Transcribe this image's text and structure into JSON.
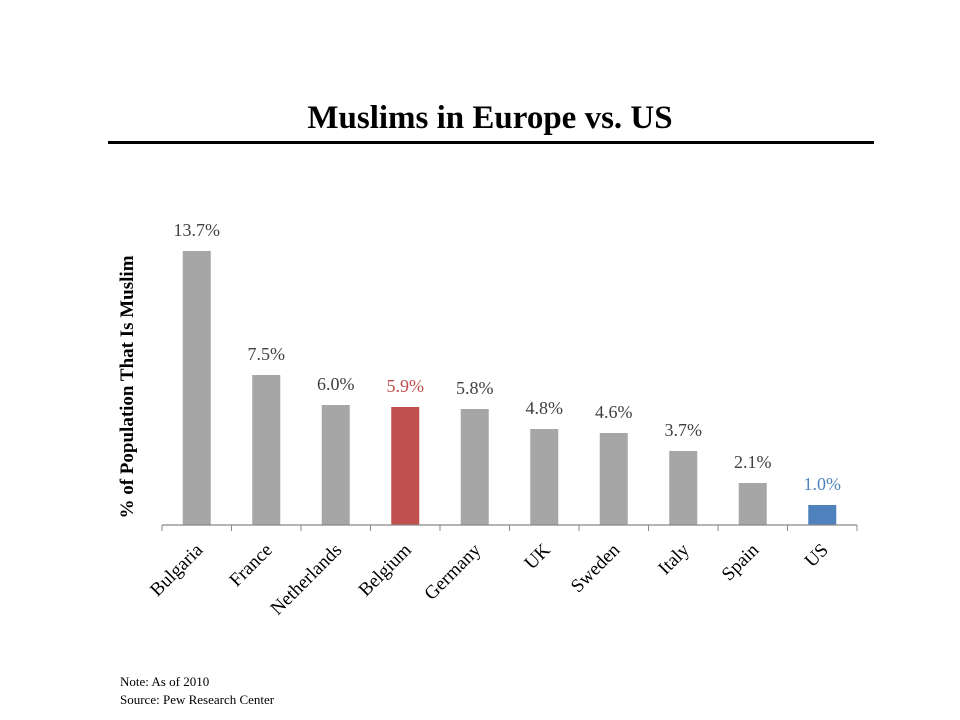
{
  "slide": {
    "title": "Muslims in Europe vs. US",
    "note": "Note: As of 2010",
    "source": "Source: Pew Research Center"
  },
  "chart_data": {
    "type": "bar",
    "title": "Muslims in Europe vs. US",
    "xlabel": "",
    "ylabel": "% of Population That Is Muslim",
    "ylim": [
      0,
      13.7
    ],
    "grid": false,
    "legend": "none",
    "categories": [
      "Bulgaria",
      "France",
      "Netherlands",
      "Belgium",
      "Germany",
      "UK",
      "Sweden",
      "Italy",
      "Spain",
      "US"
    ],
    "values": [
      13.7,
      7.5,
      6.0,
      5.9,
      5.8,
      4.8,
      4.6,
      3.7,
      2.1,
      1.0
    ],
    "value_labels": [
      "13.7%",
      "7.5%",
      "6.0%",
      "5.9%",
      "5.8%",
      "4.8%",
      "4.6%",
      "3.7%",
      "2.1%",
      "1.0%"
    ],
    "colors": {
      "default_bar": "#a6a6a6",
      "highlight_belgium": "#c0504d",
      "highlight_us": "#4f81bd",
      "default_label": "#404040",
      "axis": "#888888"
    },
    "bar_colors": [
      "#a6a6a6",
      "#a6a6a6",
      "#a6a6a6",
      "#c0504d",
      "#a6a6a6",
      "#a6a6a6",
      "#a6a6a6",
      "#a6a6a6",
      "#a6a6a6",
      "#4f81bd"
    ],
    "label_colors": [
      "#404040",
      "#404040",
      "#404040",
      "#c0504d",
      "#404040",
      "#404040",
      "#404040",
      "#404040",
      "#404040",
      "#4f81bd"
    ]
  }
}
